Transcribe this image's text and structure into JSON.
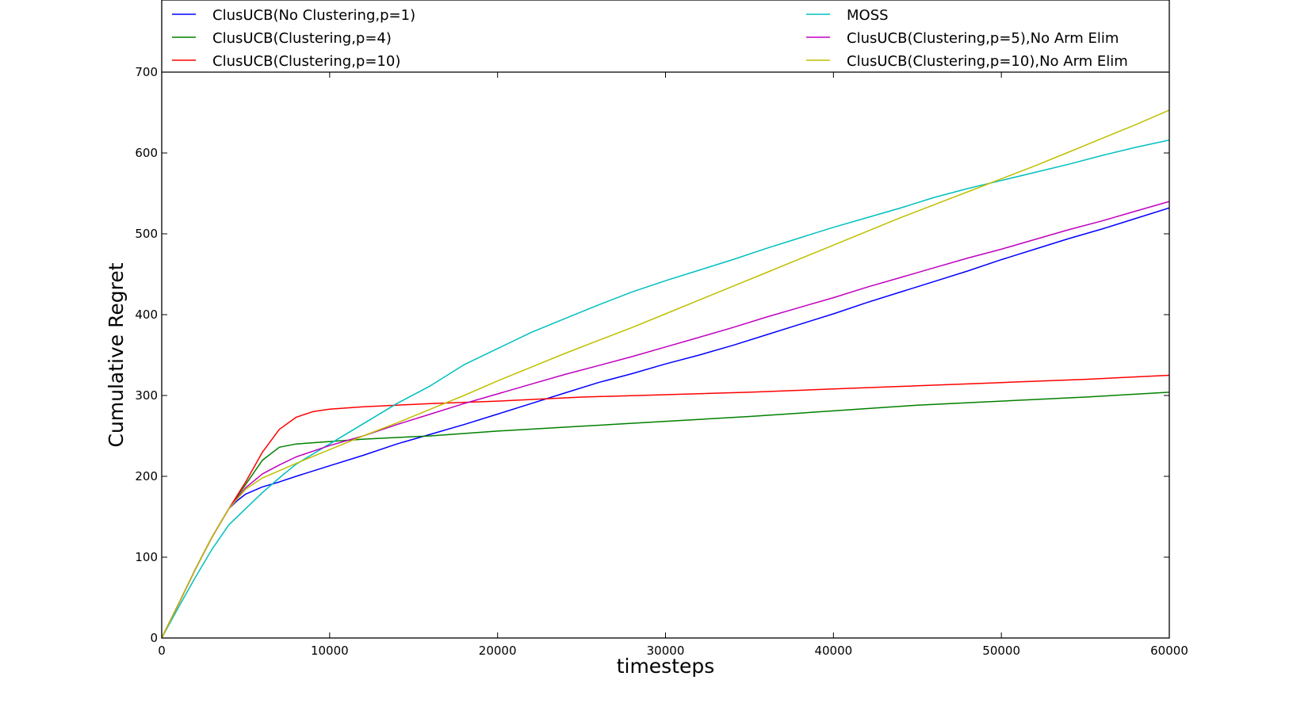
{
  "chart_data": {
    "type": "line",
    "title": "",
    "xlabel": "timesteps",
    "ylabel": "Cumulative Regret",
    "xlim": [
      0,
      60000
    ],
    "ylim": [
      0,
      700
    ],
    "xticks": [
      0,
      10000,
      20000,
      30000,
      40000,
      50000,
      60000
    ],
    "yticks": [
      0,
      100,
      200,
      300,
      400,
      500,
      600,
      700
    ],
    "grid": false,
    "legend_position": "top",
    "series": [
      {
        "name": "ClusUCB(No Clustering,p=1)",
        "color": "#0000ff",
        "x": [
          0,
          1000,
          2000,
          3000,
          4000,
          4500,
          5000,
          6000,
          7000,
          8000,
          10000,
          12000,
          14000,
          16000,
          18000,
          20000,
          22000,
          24000,
          26000,
          28000,
          30000,
          32000,
          34000,
          36000,
          38000,
          40000,
          42000,
          44000,
          46000,
          48000,
          50000,
          52000,
          54000,
          56000,
          58000,
          60000
        ],
        "y": [
          0,
          42,
          85,
          125,
          160,
          170,
          178,
          187,
          193,
          200,
          213,
          226,
          240,
          252,
          264,
          277,
          290,
          303,
          316,
          327,
          339,
          350,
          362,
          375,
          388,
          401,
          415,
          428,
          441,
          454,
          468,
          481,
          494,
          506,
          519,
          532
        ]
      },
      {
        "name": "ClusUCB(Clustering,p=4)",
        "color": "#008000",
        "x": [
          0,
          1000,
          2000,
          3000,
          4000,
          5000,
          6000,
          7000,
          8000,
          10000,
          12000,
          14000,
          16000,
          20000,
          25000,
          30000,
          35000,
          40000,
          45000,
          50000,
          55000,
          60000
        ],
        "y": [
          0,
          42,
          85,
          125,
          160,
          190,
          220,
          236,
          240,
          243,
          246,
          248,
          250,
          256,
          262,
          268,
          274,
          281,
          288,
          293,
          298,
          304
        ]
      },
      {
        "name": "ClusUCB(Clustering,p=10)",
        "color": "#ff0000",
        "x": [
          0,
          1000,
          2000,
          3000,
          4000,
          5000,
          6000,
          7000,
          8000,
          9000,
          10000,
          12000,
          14000,
          16000,
          20000,
          25000,
          30000,
          35000,
          40000,
          45000,
          50000,
          55000,
          60000
        ],
        "y": [
          0,
          42,
          85,
          125,
          160,
          193,
          230,
          258,
          273,
          280,
          283,
          286,
          288,
          290,
          293,
          298,
          301,
          304,
          308,
          312,
          316,
          320,
          325
        ]
      },
      {
        "name": "MOSS",
        "color": "#00bfbf",
        "x": [
          0,
          1000,
          2000,
          3000,
          4000,
          5000,
          6000,
          7000,
          8000,
          10000,
          12000,
          14000,
          16000,
          18000,
          20000,
          22000,
          24000,
          26000,
          28000,
          30000,
          32000,
          34000,
          36000,
          38000,
          40000,
          42000,
          44000,
          46000,
          48000,
          50000,
          52000,
          54000,
          56000,
          58000,
          60000
        ],
        "y": [
          0,
          38,
          75,
          110,
          140,
          160,
          180,
          198,
          215,
          240,
          265,
          290,
          312,
          338,
          358,
          378,
          395,
          412,
          428,
          442,
          455,
          468,
          482,
          495,
          508,
          520,
          532,
          545,
          556,
          566,
          576,
          586,
          597,
          607,
          616
        ]
      },
      {
        "name": "ClusUCB(Clustering,p=5),No Arm Elim",
        "color": "#bf00bf",
        "x": [
          0,
          1000,
          2000,
          3000,
          4000,
          5000,
          6000,
          7000,
          8000,
          10000,
          12000,
          14000,
          16000,
          18000,
          20000,
          22000,
          24000,
          26000,
          28000,
          30000,
          32000,
          34000,
          36000,
          38000,
          40000,
          42000,
          44000,
          46000,
          48000,
          50000,
          52000,
          54000,
          56000,
          58000,
          60000
        ],
        "y": [
          0,
          42,
          85,
          125,
          160,
          186,
          203,
          214,
          224,
          238,
          250,
          264,
          277,
          290,
          302,
          314,
          326,
          337,
          348,
          360,
          372,
          384,
          397,
          409,
          421,
          434,
          446,
          458,
          470,
          481,
          493,
          505,
          516,
          528,
          540
        ]
      },
      {
        "name": "ClusUCB(Clustering,p=10),No Arm Elim",
        "color": "#bfbf00",
        "x": [
          0,
          1000,
          2000,
          3000,
          4000,
          5000,
          6000,
          7000,
          8000,
          10000,
          12000,
          14000,
          16000,
          18000,
          20000,
          22000,
          24000,
          26000,
          28000,
          30000,
          32000,
          34000,
          36000,
          38000,
          40000,
          42000,
          44000,
          46000,
          48000,
          50000,
          52000,
          54000,
          56000,
          58000,
          60000
        ],
        "y": [
          0,
          42,
          85,
          125,
          160,
          184,
          198,
          207,
          216,
          233,
          250,
          266,
          283,
          300,
          318,
          335,
          352,
          368,
          384,
          401,
          418,
          435,
          452,
          469,
          486,
          503,
          520,
          536,
          552,
          568,
          584,
          601,
          618,
          635,
          653
        ]
      }
    ]
  }
}
